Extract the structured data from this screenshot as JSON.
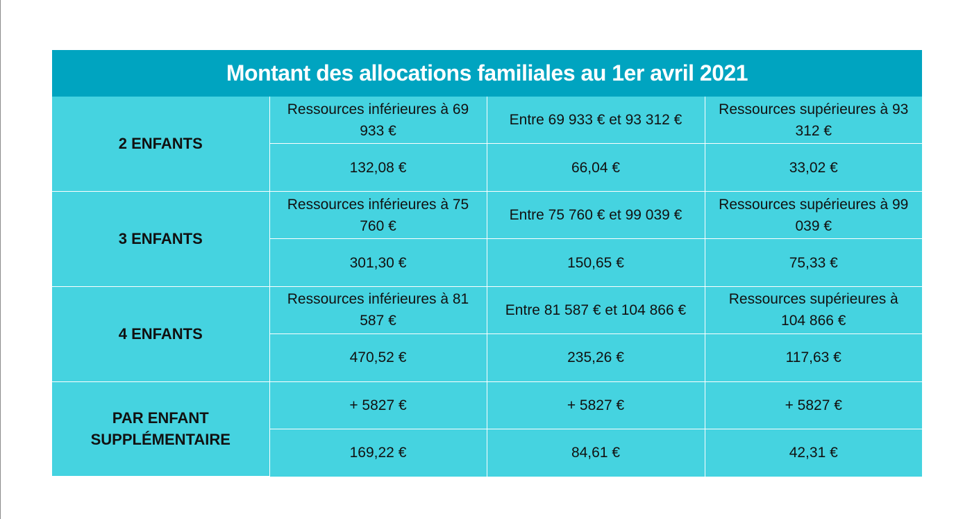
{
  "title": "Montant des allocations familiales au 1er avril 2021",
  "groups": [
    {
      "label": "2 ENFANTS",
      "thresholds": [
        "Ressources inférieures à 69 933 €",
        "Entre 69 933 € et 93 312 €",
        "Ressources supérieures à 93 312 €"
      ],
      "amounts": [
        "132,08 €",
        "66,04 €",
        "33,02 €"
      ]
    },
    {
      "label": "3 ENFANTS",
      "thresholds": [
        "Ressources inférieures à 75 760 €",
        "Entre 75 760 € et 99 039 €",
        "Ressources supérieures à 99 039 €"
      ],
      "amounts": [
        "301,30 €",
        "150,65 €",
        "75,33 €"
      ]
    },
    {
      "label": "4 ENFANTS",
      "thresholds": [
        "Ressources inférieures à 81 587 €",
        "Entre 81 587 € et 104 866 €",
        "Ressources supérieures à 104 866 €"
      ],
      "amounts": [
        "470,52 €",
        "235,26 €",
        "117,63 €"
      ]
    },
    {
      "label": "PAR ENFANT SUPPLÉMENTAIRE",
      "thresholds": [
        "+ 5827 €",
        "+ 5827 €",
        "+ 5827 €"
      ],
      "amounts": [
        "169,22 €",
        "84,61 €",
        "42,31 €"
      ]
    }
  ],
  "colors": {
    "title_background": "#00a4c0",
    "table_background": "#45d3e0",
    "grid_lines": "#ffffff",
    "title_text": "#ffffff",
    "cell_text": "#111111"
  }
}
